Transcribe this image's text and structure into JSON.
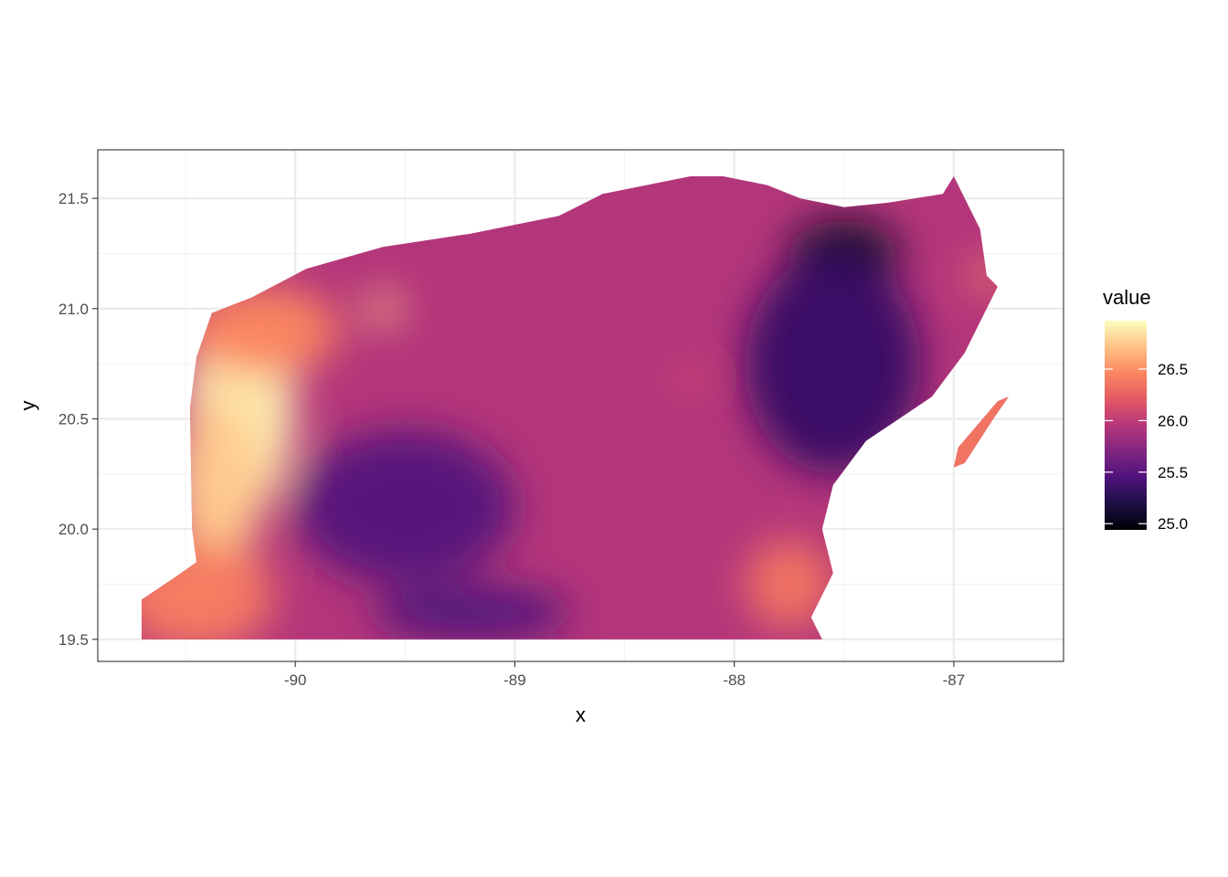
{
  "chart_data": {
    "type": "heatmap",
    "title": "",
    "xlabel": "x",
    "ylabel": "y",
    "xlim": [
      -90.9,
      -86.5
    ],
    "ylim": [
      19.4,
      21.72
    ],
    "x_ticks": [
      -90,
      -89,
      -88,
      -87
    ],
    "x_tick_labels": [
      "-90",
      "-89",
      "-88",
      "-87"
    ],
    "y_ticks": [
      19.5,
      20.0,
      20.5,
      21.0,
      21.5
    ],
    "y_tick_labels": [
      "19.5",
      "20.0",
      "20.5",
      "21.0",
      "21.5"
    ],
    "grid": true,
    "theme": "bw",
    "legend": {
      "title": "value",
      "placement": "right",
      "min": 24.94,
      "max": 26.97,
      "breaks": [
        25.0,
        25.5,
        26.0,
        26.5
      ],
      "break_labels": [
        "25.0",
        "25.5",
        "26.0",
        "26.5"
      ],
      "colormap": "magma",
      "colors": [
        "#000004",
        "#1c1044",
        "#4f127b",
        "#812581",
        "#b5367a",
        "#e55964",
        "#fb8761",
        "#fec287",
        "#fcfdbf"
      ]
    },
    "region_outline": [
      [
        -90.7,
        19.5
      ],
      [
        -90.7,
        19.68
      ],
      [
        -90.55,
        19.78
      ],
      [
        -90.45,
        19.85
      ],
      [
        -90.47,
        20.0
      ],
      [
        -90.48,
        20.55
      ],
      [
        -90.45,
        20.78
      ],
      [
        -90.38,
        20.98
      ],
      [
        -90.2,
        21.05
      ],
      [
        -89.95,
        21.18
      ],
      [
        -89.6,
        21.28
      ],
      [
        -89.2,
        21.34
      ],
      [
        -88.8,
        21.42
      ],
      [
        -88.6,
        21.52
      ],
      [
        -88.4,
        21.56
      ],
      [
        -88.2,
        21.6
      ],
      [
        -88.05,
        21.6
      ],
      [
        -87.85,
        21.56
      ],
      [
        -87.7,
        21.5
      ],
      [
        -87.5,
        21.46
      ],
      [
        -87.3,
        21.48
      ],
      [
        -87.05,
        21.52
      ],
      [
        -87.0,
        21.6
      ],
      [
        -86.95,
        21.5
      ],
      [
        -86.88,
        21.36
      ],
      [
        -86.85,
        21.15
      ],
      [
        -86.8,
        21.1
      ],
      [
        -86.85,
        21.0
      ],
      [
        -86.95,
        20.8
      ],
      [
        -87.1,
        20.6
      ],
      [
        -87.4,
        20.4
      ],
      [
        -87.55,
        20.2
      ],
      [
        -87.6,
        20.0
      ],
      [
        -87.55,
        19.8
      ],
      [
        -87.65,
        19.6
      ],
      [
        -87.6,
        19.5
      ]
    ],
    "island": [
      [
        -86.98,
        20.37
      ],
      [
        -86.8,
        20.58
      ],
      [
        -86.75,
        20.6
      ],
      [
        -86.82,
        20.5
      ],
      [
        -86.95,
        20.3
      ],
      [
        -87.0,
        20.28
      ]
    ],
    "base_value": 25.95,
    "features": [
      {
        "x": -90.25,
        "y": 20.55,
        "rx": 0.25,
        "ry": 0.5,
        "value": 26.9
      },
      {
        "x": -90.35,
        "y": 20.2,
        "rx": 0.2,
        "ry": 0.4,
        "value": 26.75
      },
      {
        "x": -90.15,
        "y": 20.9,
        "rx": 0.35,
        "ry": 0.2,
        "value": 26.45
      },
      {
        "x": -90.45,
        "y": 19.7,
        "rx": 0.35,
        "ry": 0.25,
        "value": 26.4
      },
      {
        "x": -89.6,
        "y": 21.0,
        "rx": 0.08,
        "ry": 0.07,
        "value": 26.7
      },
      {
        "x": -89.4,
        "y": 19.95,
        "rx": 0.3,
        "ry": 0.15,
        "value": 25.1
      },
      {
        "x": -89.5,
        "y": 20.1,
        "rx": 0.5,
        "ry": 0.35,
        "value": 25.5
      },
      {
        "x": -89.2,
        "y": 19.62,
        "rx": 0.45,
        "ry": 0.12,
        "value": 25.45
      },
      {
        "x": -87.5,
        "y": 21.25,
        "rx": 0.25,
        "ry": 0.15,
        "value": 25.05
      },
      {
        "x": -87.55,
        "y": 20.75,
        "rx": 0.4,
        "ry": 0.5,
        "value": 25.35
      },
      {
        "x": -87.75,
        "y": 19.75,
        "rx": 0.2,
        "ry": 0.2,
        "value": 26.35
      },
      {
        "x": -86.85,
        "y": 21.15,
        "rx": 0.07,
        "ry": 0.07,
        "value": 26.5
      },
      {
        "x": -88.2,
        "y": 20.68,
        "rx": 0.08,
        "ry": 0.06,
        "value": 26.1
      }
    ]
  }
}
